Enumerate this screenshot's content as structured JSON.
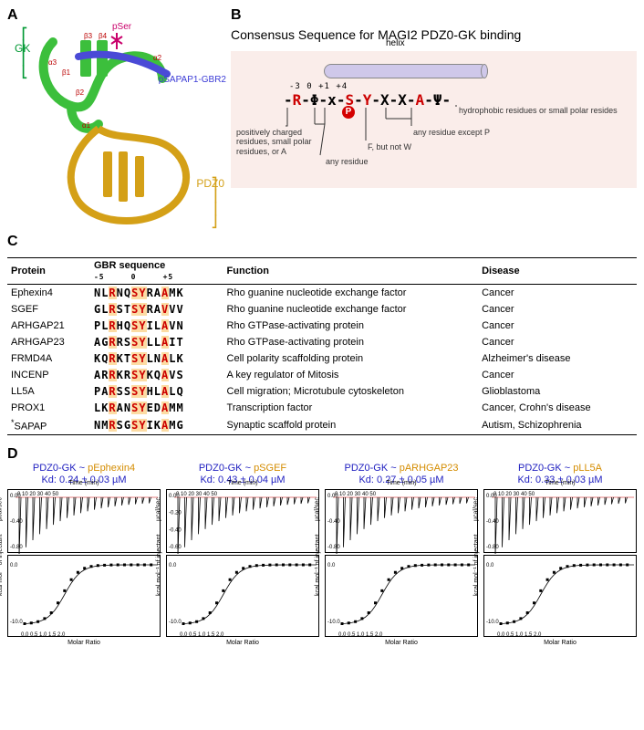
{
  "panelA": {
    "label": "A",
    "gk": "GK",
    "pdz0": "PDZ0",
    "ligand": "pSAPAP1-GBR2",
    "pser": "pSer",
    "sse": {
      "a1": "α1",
      "a2": "α2",
      "a3": "α3",
      "b1": "β1",
      "b2": "β2",
      "b3": "β3",
      "b4": "β4"
    },
    "colors": {
      "gk": "#3cbf3c",
      "pdz": "#d4a017",
      "ligand": "#4a4ad6",
      "pser_stick": "#c9006b"
    }
  },
  "panelB": {
    "label": "B",
    "title": "Consensus Sequence for MAGI2 PDZ0-GK binding",
    "helix_label": "helix",
    "positions": "-3        0 +1        +4",
    "sequence_parts": [
      "-",
      "R",
      "-Φ-x-",
      "S",
      "-",
      "Y",
      "-X-X-",
      "A",
      "-Ψ-"
    ],
    "p_label": "P",
    "annotations": {
      "left": "positively charged\nresidues, small\npolar residues, or A",
      "mid_any": "any residue",
      "f_not_w": "F, but not W",
      "except_p": "any residue except P",
      "right": "hydrophobic residues or small polar resides"
    }
  },
  "panelC": {
    "label": "C",
    "headers": [
      "Protein",
      "GBR sequence",
      "Function",
      "Disease"
    ],
    "posheader": "-5     0     +5",
    "rows": [
      {
        "protein": "Ephexin4",
        "seq": [
          "NL",
          "R",
          "NQ",
          "SY",
          "RA",
          "A",
          "MK"
        ],
        "func": "Rho guanine nucleotide exchange factor",
        "disease": "Cancer"
      },
      {
        "protein": "SGEF",
        "seq": [
          "GL",
          "R",
          "ST",
          "SY",
          "RA",
          "V",
          "VV"
        ],
        "func": "Rho guanine nucleotide exchange factor",
        "disease": "Cancer"
      },
      {
        "protein": "ARHGAP21",
        "seq": [
          "PL",
          "R",
          "HQ",
          "SY",
          "IL",
          "A",
          "VN"
        ],
        "func": "Rho GTPase-activating protein",
        "disease": "Cancer"
      },
      {
        "protein": "ARHGAP23",
        "seq": [
          "AG",
          "R",
          "RS",
          "SY",
          "LL",
          "A",
          "IT"
        ],
        "func": "Rho GTPase-activating protein",
        "disease": "Cancer"
      },
      {
        "protein": "FRMD4A",
        "seq": [
          "KQ",
          "R",
          "KT",
          "SY",
          "LN",
          "A",
          "LK"
        ],
        "func": "Cell polarity scaffolding protein",
        "disease": "Alzheimer's disease"
      },
      {
        "protein": "INCENP",
        "seq": [
          "AR",
          "R",
          "KR",
          "SY",
          "KQ",
          "A",
          "VS"
        ],
        "func": "A key regulator of Mitosis",
        "disease": "Cancer"
      },
      {
        "protein": "LL5A",
        "seq": [
          "PA",
          "R",
          "SS",
          "SY",
          "HL",
          "A",
          "LQ"
        ],
        "func": "Cell migration; Microtubule cytoskeleton",
        "disease": "Glioblastoma"
      },
      {
        "protein": "PROX1",
        "seq": [
          "LK",
          "R",
          "AN",
          "SY",
          "ED",
          "A",
          "MM"
        ],
        "func": "Transcription factor",
        "disease": "Cancer, Crohn's disease"
      },
      {
        "protein": "SAPAP",
        "star": true,
        "seq": [
          "NM",
          "R",
          "SG",
          "SY",
          "IK",
          "A",
          "MG"
        ],
        "func": "Synaptic scaffold protein",
        "disease": "Autism, Schizophrenia"
      }
    ]
  },
  "panelD": {
    "label": "D",
    "axes": {
      "top": "Time (min)",
      "y1": "µcal/sec",
      "y2": "kcal mol⁻¹ of injectant",
      "bottom": "Molar Ratio",
      "time_ticks": "0  10  20  30  40  50",
      "molar_ticks": "0.0  0.5  1.0  1.5  2.0"
    },
    "charts": [
      {
        "pair": [
          "PDZ0-GK ~ ",
          "pEphexin4"
        ],
        "kd": "Kd: 0.24 ± 0.03 µM",
        "y1_ticks": [
          "0.00",
          "-0.40",
          "-0.80"
        ],
        "y2_ticks": [
          "0.0",
          "-10.0"
        ]
      },
      {
        "pair": [
          "PDZ0-GK ~ ",
          "pSGEF"
        ],
        "kd": "Kd: 0.43 ± 0.04 µM",
        "y1_ticks": [
          "0.00",
          "-0.20",
          "-0.40",
          "-0.60"
        ],
        "y2_ticks": [
          "0.0",
          "-10.0"
        ]
      },
      {
        "pair": [
          "PDZ0-GK ~ ",
          "pARHGAP23"
        ],
        "kd": "Kd: 0.27 ± 0.05 µM",
        "y1_ticks": [
          "0.00",
          "-0.40",
          "-0.80"
        ],
        "y2_ticks": [
          "0.0",
          "-10.0"
        ]
      },
      {
        "pair": [
          "PDZ0-GK ~ ",
          "pLL5A"
        ],
        "kd": "Kd: 0.33 ± 0.03 µM",
        "y1_ticks": [
          "0.00",
          "-0.40",
          "-0.80"
        ],
        "y2_ticks": [
          "0.0",
          "-10.0"
        ]
      }
    ]
  }
}
